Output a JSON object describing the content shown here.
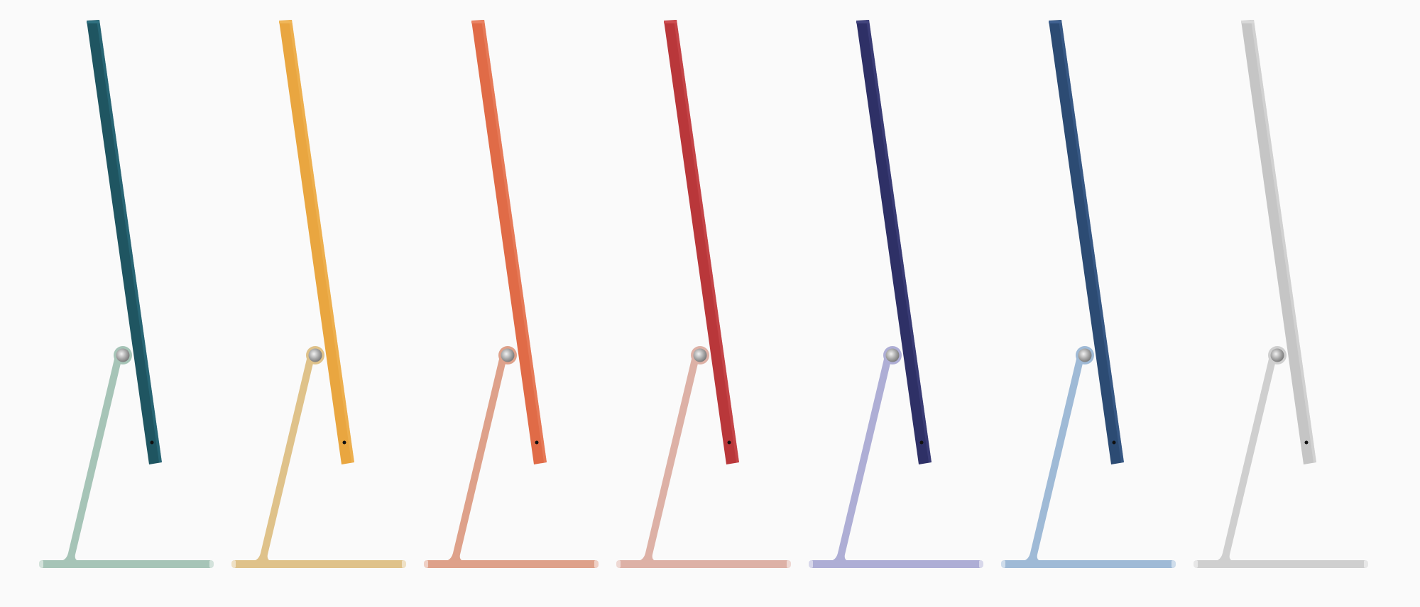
{
  "background": "#fafafa",
  "units": [
    {
      "panel": "#1f5561",
      "panel_edge": "#2f7080",
      "stand": "#a6c4b7"
    },
    {
      "panel": "#e9a640",
      "panel_edge": "#f0b658",
      "stand": "#dfc28a"
    },
    {
      "panel": "#e06b47",
      "panel_edge": "#ea8262",
      "stand": "#dea18a"
    },
    {
      "panel": "#b9373a",
      "panel_edge": "#cc4d50",
      "stand": "#ddb1a6"
    },
    {
      "panel": "#2e3066",
      "panel_edge": "#42457e",
      "stand": "#aeaed5"
    },
    {
      "panel": "#2c4b73",
      "panel_edge": "#3f6190",
      "stand": "#9fbad6"
    },
    {
      "panel": "#c5c5c5",
      "panel_edge": "#d8d8d8",
      "stand": "#cfcfcf"
    }
  ]
}
